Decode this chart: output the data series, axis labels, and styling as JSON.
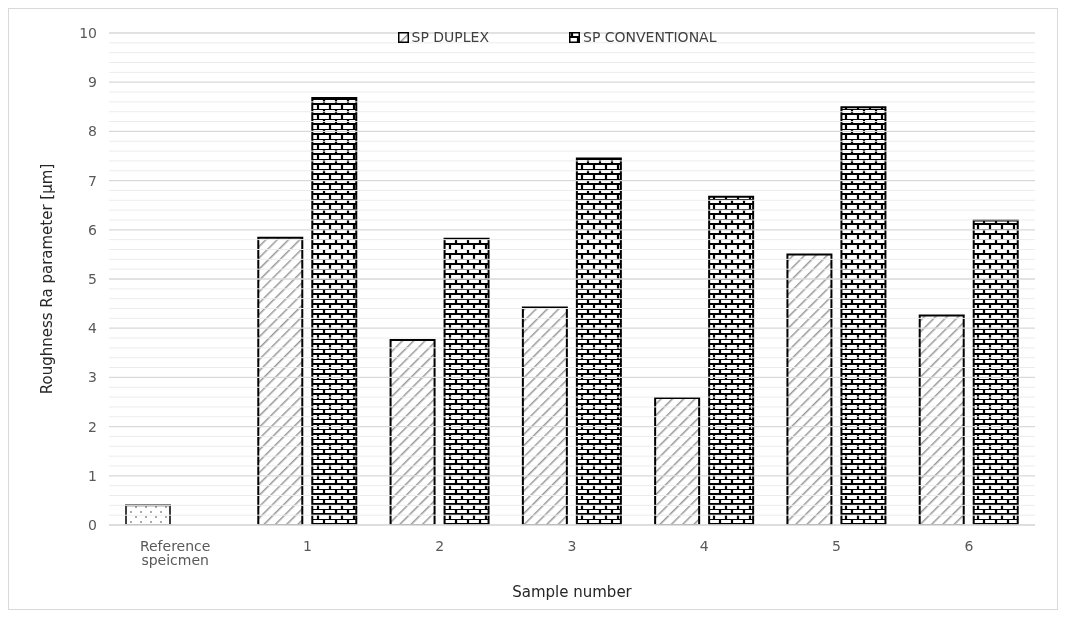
{
  "chart_data": {
    "type": "bar",
    "xlabel": "Sample number",
    "ylabel": "Roughness Ra parameter [µm]",
    "categories": [
      "Reference speicmen",
      "1",
      "2",
      "3",
      "4",
      "5",
      "6"
    ],
    "series": [
      {
        "name": "SP DUPLEX",
        "color": "#000000",
        "colors": [
          "#404040",
          "#000000",
          "#000000",
          "#000000",
          "#000000",
          "#000000",
          "#000000"
        ],
        "values": [
          0.4,
          5.84,
          3.76,
          4.42,
          2.58,
          5.5,
          4.26
        ]
      },
      {
        "name": "SP CONVENTIONAL",
        "color": "#000000",
        "values": [
          null,
          8.68,
          5.82,
          7.45,
          6.67,
          8.49,
          6.19
        ]
      }
    ],
    "ylim": [
      0,
      10
    ],
    "yticks": [
      0,
      {
        "value": 0.2,
        "label": null
      },
      {
        "value": 0.4,
        "label": null
      },
      {
        "value": 0.6,
        "label": null
      },
      {
        "value": 0.8,
        "label": null
      },
      1,
      {
        "value": 1.2,
        "label": null
      },
      {
        "value": 1.4,
        "label": null
      },
      {
        "value": 1.6,
        "label": null
      },
      {
        "value": 1.8,
        "label": null
      },
      2,
      {
        "value": 2.2,
        "label": null
      },
      {
        "value": 2.4,
        "label": null
      },
      {
        "value": 2.6,
        "label": null
      },
      {
        "value": 2.8,
        "label": null
      },
      3,
      {
        "value": 3.2,
        "label": null
      },
      {
        "value": 3.4,
        "label": null
      },
      {
        "value": 3.6,
        "label": null
      },
      {
        "value": 3.8,
        "label": null
      },
      4,
      {
        "value": 4.2,
        "label": null
      },
      {
        "value": 4.4,
        "label": null
      },
      {
        "value": 4.6,
        "label": null
      },
      {
        "value": 4.8,
        "label": null
      },
      5,
      {
        "value": 5.2,
        "label": null
      },
      {
        "value": 5.4,
        "label": null
      },
      {
        "value": 5.6,
        "label": null
      },
      {
        "value": 5.8,
        "label": null
      },
      6,
      {
        "value": 6.2,
        "label": null
      },
      {
        "value": 6.4,
        "label": null
      },
      {
        "value": 6.6,
        "label": null
      },
      {
        "value": 6.8,
        "label": null
      },
      7,
      {
        "value": 7.2,
        "label": null
      },
      {
        "value": 7.4,
        "label": null
      },
      {
        "value": 7.6,
        "label": null
      },
      {
        "value": 7.8,
        "label": null
      },
      8,
      {
        "value": 8.2,
        "label": null
      },
      {
        "value": 8.4,
        "label": null
      },
      {
        "value": 8.6,
        "label": null
      },
      {
        "value": 8.8,
        "label": null
      },
      9,
      {
        "value": 9.2,
        "label": null
      },
      {
        "value": 9.4,
        "label": null
      },
      {
        "value": 9.6,
        "label": null
      },
      {
        "value": 9.8,
        "label": null
      },
      10
    ],
    "grid": "y",
    "legend": "top"
  }
}
